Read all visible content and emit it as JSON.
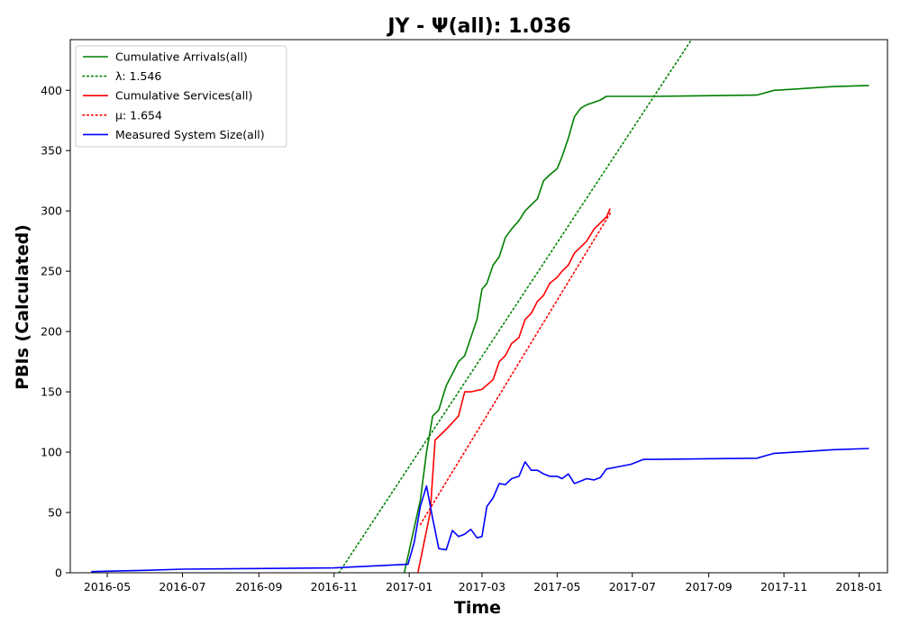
{
  "chart_data": {
    "type": "line",
    "title": "JY -  Ψ(all): 1.036",
    "xlabel": "Time",
    "ylabel": "PBIs (Calculated)",
    "xlim": [
      "2016-04-01",
      "2018-01-24"
    ],
    "ylim": [
      0,
      442
    ],
    "grid": false,
    "legend_placement": "top-left",
    "x_ticks": [
      "2016-05",
      "2016-07",
      "2016-09",
      "2016-11",
      "2017-01",
      "2017-03",
      "2017-05",
      "2017-07",
      "2017-09",
      "2017-11",
      "2018-01"
    ],
    "y_ticks": [
      0,
      50,
      100,
      150,
      200,
      250,
      300,
      350,
      400
    ],
    "series": [
      {
        "name": "Cumulative Arrivals(all)",
        "color": "#008000",
        "style": "solid",
        "x": [
          "2016-12-28",
          "2017-01-10",
          "2017-01-15",
          "2017-01-20",
          "2017-01-25",
          "2017-01-31",
          "2017-02-05",
          "2017-02-10",
          "2017-02-15",
          "2017-02-20",
          "2017-02-25",
          "2017-03-01",
          "2017-03-05",
          "2017-03-10",
          "2017-03-15",
          "2017-03-20",
          "2017-03-25",
          "2017-03-31",
          "2017-04-05",
          "2017-04-10",
          "2017-04-15",
          "2017-04-20",
          "2017-04-25",
          "2017-05-01",
          "2017-05-05",
          "2017-05-10",
          "2017-05-15",
          "2017-05-20",
          "2017-05-25",
          "2017-05-31",
          "2017-06-05",
          "2017-06-10",
          "2017-06-20",
          "2017-06-30",
          "2017-07-10",
          "2017-07-20",
          "2017-10-10",
          "2017-10-24",
          "2017-11-10",
          "2017-12-10",
          "2018-01-09"
        ],
        "y": [
          0,
          60,
          100,
          130,
          135,
          155,
          165,
          175,
          180,
          195,
          210,
          235,
          240,
          255,
          262,
          278,
          285,
          292,
          300,
          305,
          310,
          325,
          330,
          335,
          345,
          360,
          378,
          385,
          388,
          390,
          392,
          395,
          395,
          395,
          395,
          395,
          396,
          400,
          401,
          403,
          404
        ]
      },
      {
        "name": "λ: 1.546",
        "color": "#008000",
        "style": "dotted",
        "x": [
          "2016-11-05",
          "2017-08-18"
        ],
        "y": [
          0,
          442
        ]
      },
      {
        "name": "Cumulative Services(all)",
        "color": "#ff0000",
        "style": "solid",
        "x": [
          "2017-01-08",
          "2017-01-18",
          "2017-01-22",
          "2017-01-27",
          "2017-02-01",
          "2017-02-10",
          "2017-02-15",
          "2017-02-20",
          "2017-03-01",
          "2017-03-10",
          "2017-03-15",
          "2017-03-20",
          "2017-03-25",
          "2017-03-31",
          "2017-04-05",
          "2017-04-10",
          "2017-04-15",
          "2017-04-20",
          "2017-04-25",
          "2017-05-01",
          "2017-05-05",
          "2017-05-10",
          "2017-05-15",
          "2017-05-20",
          "2017-05-25",
          "2017-05-31",
          "2017-06-05",
          "2017-06-10",
          "2017-06-13"
        ],
        "y": [
          0,
          50,
          110,
          115,
          120,
          130,
          150,
          150,
          152,
          160,
          175,
          180,
          190,
          195,
          210,
          215,
          225,
          230,
          240,
          245,
          250,
          255,
          265,
          270,
          275,
          285,
          290,
          295,
          302
        ]
      },
      {
        "name": "μ: 1.654",
        "color": "#ff0000",
        "style": "dotted",
        "x": [
          "2017-01-10",
          "2017-06-13"
        ],
        "y": [
          40,
          298
        ]
      },
      {
        "name": "Measured System Size(all)",
        "color": "#0000ff",
        "style": "solid",
        "x": [
          "2016-04-18",
          "2016-06-01",
          "2016-07-01",
          "2016-09-01",
          "2016-11-01",
          "2016-12-31",
          "2017-01-05",
          "2017-01-10",
          "2017-01-15",
          "2017-01-20",
          "2017-01-25",
          "2017-01-31",
          "2017-02-05",
          "2017-02-10",
          "2017-02-15",
          "2017-02-20",
          "2017-02-25",
          "2017-03-01",
          "2017-03-05",
          "2017-03-10",
          "2017-03-15",
          "2017-03-20",
          "2017-03-25",
          "2017-03-31",
          "2017-04-05",
          "2017-04-10",
          "2017-04-15",
          "2017-04-20",
          "2017-04-25",
          "2017-05-01",
          "2017-05-05",
          "2017-05-10",
          "2017-05-15",
          "2017-05-20",
          "2017-05-25",
          "2017-05-31",
          "2017-06-05",
          "2017-06-10",
          "2017-06-20",
          "2017-06-30",
          "2017-07-10",
          "2017-07-20",
          "2017-10-10",
          "2017-10-24",
          "2017-11-10",
          "2017-12-10",
          "2018-01-09"
        ],
        "y": [
          1,
          2,
          3,
          3.5,
          4,
          7,
          25,
          55,
          72,
          45,
          20,
          19,
          35,
          30,
          32,
          36,
          29,
          30,
          55,
          62,
          74,
          73,
          78,
          80,
          92,
          85,
          85,
          82,
          80,
          80,
          78,
          82,
          74,
          76,
          78,
          77,
          79,
          86,
          88,
          90,
          94,
          94,
          95,
          99,
          100,
          102,
          103
        ]
      }
    ]
  }
}
